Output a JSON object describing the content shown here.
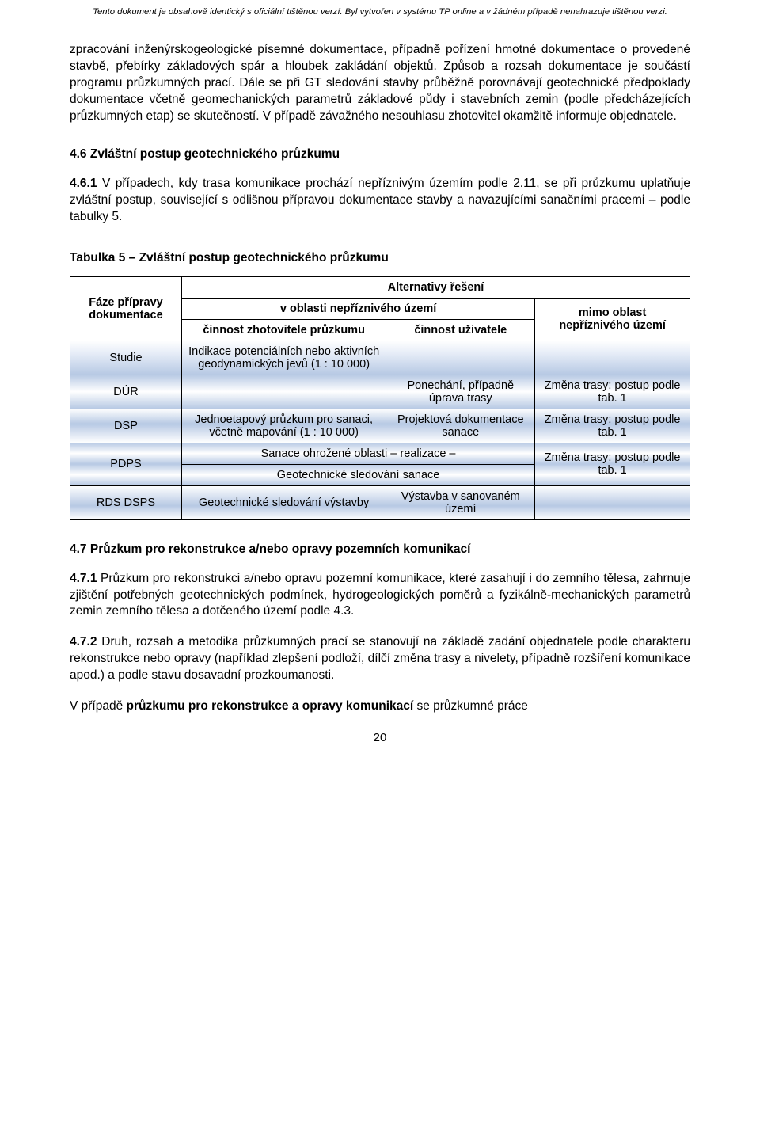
{
  "header_notice": "Tento dokument je obsahově identický s oficiální tištěnou verzí. Byl vytvořen v systému TP online a v žádném případě nenahrazuje tištěnou verzi.",
  "paragraphs": {
    "p1": "zpracování inženýrskogeologické písemné dokumentace, případně pořízení hmotné dokumentace o provedené stavbě, přebírky základových spár a hloubek zakládání objektů. Způsob a rozsah dokumentace je součástí programu průzkumných prací. Dále se při GT sledování stavby průběžně porovnávají geotechnické předpoklady dokumentace včetně geomechanických parametrů základové půdy i stavebních zemin (podle předcházejících průzkumných etap) se skutečností. V případě závažného nesouhlasu zhotovitel okamžitě informuje objednatele.",
    "h46": "4.6 Zvláštní postup geotechnického průzkumu",
    "p461_num": "4.6.1",
    "p461": " V případech, kdy trasa komunikace prochází nepříznivým územím podle 2.11, se při průzkumu uplatňuje zvláštní postup, související s odlišnou přípravou dokumentace stavby a navazujícími sanačními pracemi – podle tabulky 5.",
    "table5_title": "Tabulka 5 – Zvláštní postup geotechnického průzkumu",
    "h47": "4.7 Průzkum pro rekonstrukce a/nebo opravy pozemních komunikací",
    "p471_num": "4.7.1",
    "p471": " Průzkum pro rekonstrukci a/nebo opravu pozemní komunikace, které zasahují i do zemního tělesa, zahrnuje zjištění potřebných geotechnických podmínek, hydrogeologických poměrů a fyzikálně-mechanických parametrů zemin zemního tělesa a dotčeného území podle 4.3.",
    "p472_num": "4.7.2",
    "p472": " Druh, rozsah a metodika průzkumných prací se stanovují na základě zadání objednatele podle charakteru rekonstrukce nebo opravy (například zlepšení podloží, dílčí změna trasy a nivelety, případně rozšíření komunikace apod.) a podle stavu dosavadní prozkoumanosti.",
    "p473_pre": "V případě ",
    "p473_bold": "průzkumu pro rekonstrukce a opravy komunikací",
    "p473_post": " se průzkumné práce"
  },
  "table": {
    "headers": {
      "faze": "Fáze přípravy dokumentace",
      "alt": "Alternativy řešení",
      "oblast": "v oblasti nepříznivého území",
      "mimo": "mimo oblast nepříznivého území",
      "zhot": "činnost zhotovitele průzkumu",
      "uziv": "činnost uživatele"
    },
    "rows": {
      "studie": {
        "faze": "Studie",
        "zhot": "Indikace potenciálních nebo aktivních geodynamických jevů (1 : 10 000)",
        "uziv": "",
        "mimo": ""
      },
      "dur": {
        "faze": "DÚR",
        "zhot": "",
        "uziv": "Ponechání, případně úprava trasy",
        "mimo": "Změna trasy: postup podle tab. 1"
      },
      "dsp": {
        "faze": "DSP",
        "zhot": "Jednoetapový průzkum pro sanaci, včetně mapování (1 : 10 000)",
        "uziv": "Projektová dokumentace sanace",
        "mimo": "Změna trasy: postup podle tab. 1"
      },
      "pdps": {
        "faze": "PDPS",
        "zhot1": "Sanace ohrožené oblasti – realizace –",
        "zhot2": "Geotechnické sledování sanace",
        "mimo": "Změna trasy: postup podle tab. 1"
      },
      "rds": {
        "faze": "RDS DSPS",
        "zhot": "Geotechnické sledování výstavby",
        "uziv": "Výstavba v sanovaném území",
        "mimo": ""
      }
    }
  },
  "page_number": "20"
}
